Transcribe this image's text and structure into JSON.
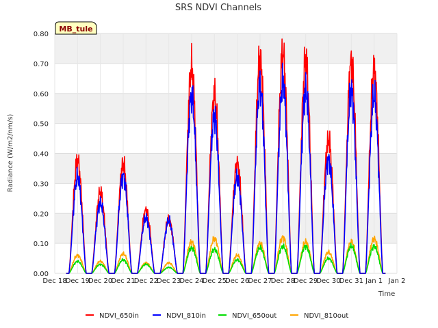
{
  "chart_data": {
    "type": "line",
    "title": "SRS NDVI Channels",
    "xlabel": "Time",
    "ylabel": "Radiance (W/m2/nm/s)",
    "badge": "MB_tule",
    "ylim": [
      0,
      0.8
    ],
    "yticks": [
      "0.00",
      "0.10",
      "0.20",
      "0.30",
      "0.40",
      "0.50",
      "0.60",
      "0.70",
      "0.80"
    ],
    "xlim": [
      0,
      15
    ],
    "xticks": [
      "Dec 18",
      "Dec 19",
      "Dec 20",
      "Dec 21",
      "Dec 22",
      "Dec 23",
      "Dec 24",
      "Dec 25",
      "Dec 26",
      "Dec 27",
      "Dec 28",
      "Dec 29",
      "Dec 30",
      "Dec 31",
      "Jan 1",
      "Jan 2"
    ],
    "grid": true,
    "legend_position": "bottom",
    "series": [
      {
        "name": "NDVI_650in",
        "color": "#ff0000",
        "peaks": [
          0.375,
          0.27,
          0.365,
          0.21,
          0.18,
          0.685,
          0.595,
          0.365,
          0.715,
          0.73,
          0.71,
          0.445,
          0.705,
          0.68
        ]
      },
      {
        "name": "NDVI_810in",
        "color": "#0000ff",
        "peaks": [
          0.32,
          0.235,
          0.325,
          0.185,
          0.175,
          0.59,
          0.525,
          0.32,
          0.62,
          0.635,
          0.61,
          0.38,
          0.61,
          0.59
        ]
      },
      {
        "name": "NDVI_650out",
        "color": "#00dd00",
        "peaks": [
          0.04,
          0.03,
          0.045,
          0.03,
          0.02,
          0.085,
          0.08,
          0.045,
          0.085,
          0.09,
          0.09,
          0.05,
          0.09,
          0.09
        ]
      },
      {
        "name": "NDVI_810out",
        "color": "#ffa500",
        "peaks": [
          0.06,
          0.04,
          0.065,
          0.035,
          0.035,
          0.105,
          0.115,
          0.06,
          0.1,
          0.12,
          0.105,
          0.07,
          0.105,
          0.115
        ]
      }
    ],
    "day_offsets": [
      1,
      2,
      3,
      4,
      5,
      6,
      7,
      8,
      9,
      10,
      11,
      12,
      13,
      14
    ]
  }
}
